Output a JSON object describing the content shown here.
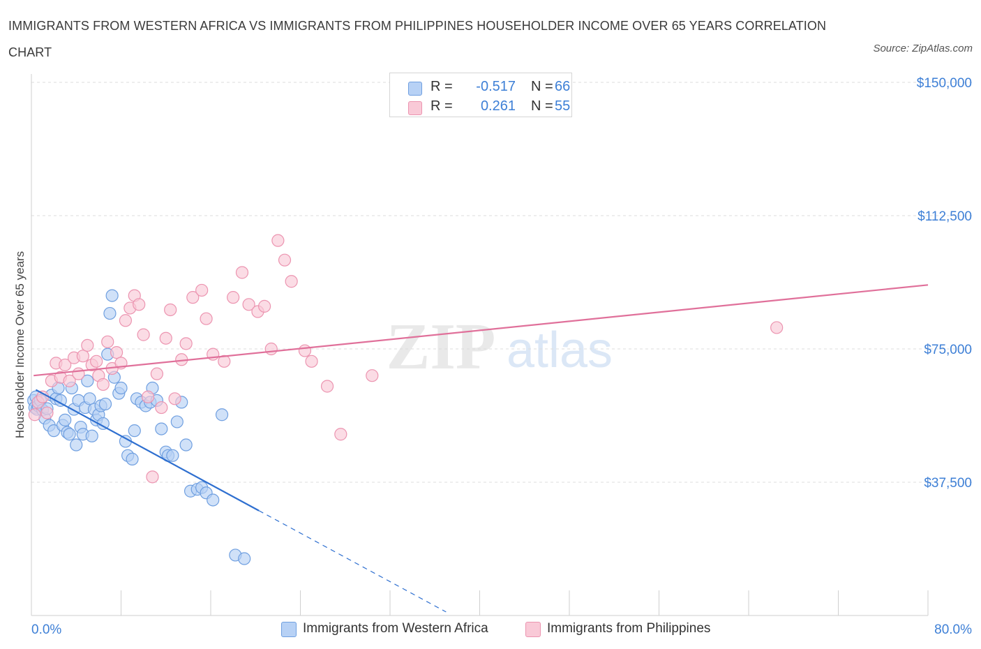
{
  "title": "IMMIGRANTS FROM WESTERN AFRICA VS IMMIGRANTS FROM PHILIPPINES HOUSEHOLDER INCOME OVER 65 YEARS CORRELATION CHART",
  "source": "Source: ZipAtlas.com",
  "watermark": {
    "zip": "ZIP",
    "atlas": "atlas"
  },
  "colors": {
    "blue_fill": "#b7d1f5",
    "blue_stroke": "#6f9fe0",
    "blue_line": "#2e6fd0",
    "pink_fill": "#f9c9d7",
    "pink_stroke": "#ec94b0",
    "pink_line": "#e0709a",
    "axis_text": "#3d7fd6",
    "grid": "#dcdcdc"
  },
  "legend": {
    "rows": [
      {
        "r_label": "R =",
        "r_value": "-0.517",
        "n_label": "N =",
        "n_value": "66",
        "color": "#b7d1f5",
        "border": "#6f9fe0"
      },
      {
        "r_label": "R =",
        "r_value": "0.261",
        "n_label": "N =",
        "n_value": "55",
        "color": "#f9c9d7",
        "border": "#ec94b0"
      }
    ]
  },
  "bottom_legend": [
    {
      "label": "Immigrants from Western Africa",
      "color": "#b7d1f5",
      "border": "#6f9fe0"
    },
    {
      "label": "Immigrants from Philippines",
      "color": "#f9c9d7",
      "border": "#ec94b0"
    }
  ],
  "chart_data": {
    "type": "scatter",
    "title": "IMMIGRANTS FROM WESTERN AFRICA VS IMMIGRANTS FROM PHILIPPINES HOUSEHOLDER INCOME OVER 65 YEARS CORRELATION CHART",
    "xlabel": "",
    "ylabel": "Householder Income Over 65 years",
    "xlim": [
      0,
      80
    ],
    "ylim": [
      0,
      150000
    ],
    "x_tick_labels": [
      {
        "value": 0,
        "label": "0.0%"
      },
      {
        "value": 80,
        "label": "80.0%"
      }
    ],
    "y_tick_labels": [
      {
        "value": 150000,
        "label": "$150,000"
      },
      {
        "value": 112500,
        "label": "$112,500"
      },
      {
        "value": 75000,
        "label": "$75,000"
      },
      {
        "value": 37500,
        "label": "$37,500"
      }
    ],
    "x_minor_ticks": [
      8,
      16,
      24,
      32,
      40,
      48,
      56,
      64,
      72,
      80
    ],
    "grid": true,
    "series": [
      {
        "name": "Immigrants from Western Africa",
        "color": "#b7d1f5",
        "points": [
          [
            0.2,
            60500
          ],
          [
            0.3,
            58500
          ],
          [
            0.4,
            61500
          ],
          [
            0.5,
            58000
          ],
          [
            0.6,
            59000
          ],
          [
            0.8,
            60500
          ],
          [
            1.0,
            57800
          ],
          [
            1.2,
            55500
          ],
          [
            1.4,
            58200
          ],
          [
            1.6,
            53500
          ],
          [
            1.8,
            62000
          ],
          [
            2.0,
            52000
          ],
          [
            2.2,
            61000
          ],
          [
            2.4,
            64000
          ],
          [
            2.6,
            60500
          ],
          [
            2.8,
            53500
          ],
          [
            3.0,
            55000
          ],
          [
            3.2,
            51500
          ],
          [
            3.4,
            51000
          ],
          [
            3.6,
            64000
          ],
          [
            3.8,
            58000
          ],
          [
            4.0,
            48000
          ],
          [
            4.2,
            60500
          ],
          [
            4.4,
            53000
          ],
          [
            4.6,
            51000
          ],
          [
            4.8,
            58500
          ],
          [
            5.0,
            66000
          ],
          [
            5.2,
            61000
          ],
          [
            5.4,
            50500
          ],
          [
            5.6,
            58000
          ],
          [
            5.8,
            55000
          ],
          [
            6.0,
            56500
          ],
          [
            6.2,
            59000
          ],
          [
            6.4,
            54000
          ],
          [
            6.6,
            59500
          ],
          [
            6.8,
            73500
          ],
          [
            7.0,
            85000
          ],
          [
            7.2,
            90000
          ],
          [
            7.4,
            67000
          ],
          [
            7.8,
            62500
          ],
          [
            8.0,
            64000
          ],
          [
            8.4,
            49000
          ],
          [
            8.6,
            45000
          ],
          [
            9.0,
            44000
          ],
          [
            9.2,
            52000
          ],
          [
            9.4,
            61000
          ],
          [
            9.8,
            60000
          ],
          [
            10.2,
            59000
          ],
          [
            10.6,
            60000
          ],
          [
            10.8,
            64000
          ],
          [
            11.2,
            60500
          ],
          [
            11.6,
            52500
          ],
          [
            12.0,
            46000
          ],
          [
            12.2,
            45000
          ],
          [
            12.6,
            45000
          ],
          [
            13.0,
            54500
          ],
          [
            13.4,
            60000
          ],
          [
            13.8,
            48000
          ],
          [
            14.2,
            35000
          ],
          [
            14.8,
            35500
          ],
          [
            15.2,
            36000
          ],
          [
            15.6,
            34500
          ],
          [
            16.2,
            32500
          ],
          [
            17.0,
            56500
          ],
          [
            18.2,
            17000
          ],
          [
            19.0,
            16000
          ]
        ]
      },
      {
        "name": "Immigrants from Philippines",
        "color": "#f9c9d7",
        "points": [
          [
            0.3,
            56500
          ],
          [
            0.6,
            60000
          ],
          [
            1.0,
            61500
          ],
          [
            1.4,
            57000
          ],
          [
            1.8,
            66000
          ],
          [
            2.2,
            71000
          ],
          [
            2.6,
            67000
          ],
          [
            3.0,
            70500
          ],
          [
            3.4,
            66000
          ],
          [
            3.8,
            72500
          ],
          [
            4.2,
            68000
          ],
          [
            4.6,
            73000
          ],
          [
            5.0,
            76000
          ],
          [
            5.4,
            70500
          ],
          [
            5.8,
            71500
          ],
          [
            6.0,
            67500
          ],
          [
            6.4,
            65000
          ],
          [
            6.8,
            77000
          ],
          [
            7.2,
            69500
          ],
          [
            7.6,
            74000
          ],
          [
            8.0,
            71000
          ],
          [
            8.4,
            83000
          ],
          [
            8.8,
            86500
          ],
          [
            9.2,
            90000
          ],
          [
            9.6,
            87500
          ],
          [
            10.0,
            79000
          ],
          [
            10.4,
            61500
          ],
          [
            10.8,
            39000
          ],
          [
            11.2,
            68000
          ],
          [
            11.6,
            58500
          ],
          [
            12.0,
            78000
          ],
          [
            12.4,
            86000
          ],
          [
            12.8,
            61000
          ],
          [
            13.4,
            72000
          ],
          [
            13.8,
            76500
          ],
          [
            14.4,
            89500
          ],
          [
            15.2,
            91500
          ],
          [
            15.6,
            83500
          ],
          [
            16.2,
            73500
          ],
          [
            17.2,
            71500
          ],
          [
            18.0,
            89500
          ],
          [
            18.8,
            96500
          ],
          [
            19.4,
            87500
          ],
          [
            20.2,
            85500
          ],
          [
            20.8,
            87000
          ],
          [
            21.4,
            75000
          ],
          [
            22.0,
            105500
          ],
          [
            22.6,
            100000
          ],
          [
            23.2,
            94000
          ],
          [
            24.4,
            74500
          ],
          [
            25.0,
            71500
          ],
          [
            26.4,
            64500
          ],
          [
            27.6,
            51000
          ],
          [
            30.4,
            67500
          ],
          [
            66.5,
            81000
          ]
        ]
      }
    ],
    "trend_lines": [
      {
        "series": "Immigrants from Western Africa",
        "solid": [
          [
            0.4,
            63500
          ],
          [
            20.3,
            29500
          ]
        ],
        "dashed": [
          [
            20.3,
            29500
          ],
          [
            37.0,
            1000
          ]
        ]
      },
      {
        "series": "Immigrants from Philippines",
        "solid": [
          [
            0.2,
            67500
          ],
          [
            80.0,
            93000
          ]
        ]
      }
    ]
  }
}
